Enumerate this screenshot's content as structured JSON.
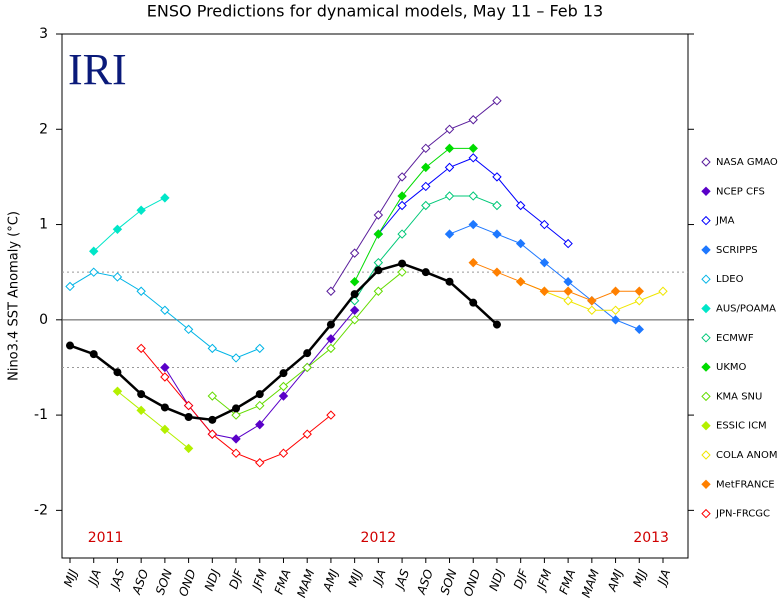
{
  "chart_data": {
    "type": "line",
    "title": "ENSO Predictions for dynamical models, May 11 – Feb 13",
    "logo": "IRI",
    "y_label": "Nino3.4 SST Anomaly (°C)",
    "annotations": [
      "2011",
      "2012",
      "2013"
    ],
    "categories": [
      "MJJ",
      "JJA",
      "JAS",
      "ASO",
      "SON",
      "OND",
      "NDJ",
      "DJF",
      "JFM",
      "FMA",
      "MAM",
      "AMJ",
      "MJJ",
      "JJA",
      "JAS",
      "ASO",
      "SON",
      "OND",
      "NDJ",
      "DJF",
      "JFM",
      "FMA",
      "MAM",
      "AMJ",
      "MJJ",
      "JJA"
    ],
    "ylim": [
      -2.5,
      3
    ],
    "yticks": [
      -2,
      -1,
      0,
      1,
      2,
      3
    ],
    "hlines": [
      0,
      0.5,
      -0.5
    ],
    "observed": {
      "color": "#000000",
      "values": [
        -0.27,
        -0.36,
        -0.55,
        -0.78,
        -0.92,
        -1.02,
        -1.05,
        -0.93,
        -0.78,
        -0.56,
        -0.35,
        -0.05,
        0.27,
        0.52,
        0.59,
        0.5,
        0.4,
        0.18,
        -0.05,
        null,
        null,
        null,
        null,
        null,
        null,
        null
      ]
    },
    "series": [
      {
        "name": "NASA GMAO",
        "color": "#5a1e9c",
        "filled": false,
        "values": [
          null,
          null,
          null,
          null,
          null,
          null,
          null,
          null,
          null,
          null,
          null,
          0.3,
          0.7,
          1.1,
          1.5,
          1.8,
          2.0,
          2.1,
          2.3,
          null,
          null,
          null,
          null,
          null,
          null,
          null
        ]
      },
      {
        "name": "NCEP CFS",
        "color": "#5a00c8",
        "filled": true,
        "values": [
          null,
          null,
          null,
          null,
          -0.5,
          -0.9,
          -1.2,
          -1.25,
          -1.1,
          -0.8,
          -0.5,
          -0.2,
          0.1,
          null,
          null,
          null,
          null,
          null,
          null,
          null,
          null,
          null,
          null,
          null,
          null,
          null
        ]
      },
      {
        "name": "JMA",
        "color": "#0000ff",
        "filled": false,
        "values": [
          null,
          null,
          null,
          null,
          null,
          null,
          null,
          null,
          null,
          null,
          null,
          null,
          null,
          0.9,
          1.2,
          1.4,
          1.6,
          1.7,
          1.5,
          1.2,
          1.0,
          0.8,
          null,
          null,
          null,
          null
        ]
      },
      {
        "name": "SCRIPPS",
        "color": "#1e78ff",
        "filled": true,
        "values": [
          null,
          null,
          null,
          null,
          null,
          null,
          null,
          null,
          null,
          null,
          null,
          null,
          null,
          null,
          null,
          null,
          0.9,
          1.0,
          0.9,
          0.8,
          0.6,
          0.4,
          0.2,
          0.0,
          -0.1,
          null
        ]
      },
      {
        "name": "LDEO",
        "color": "#00b4e6",
        "filled": false,
        "values": [
          0.35,
          0.5,
          0.45,
          0.3,
          0.1,
          -0.1,
          -0.3,
          -0.4,
          -0.3,
          null,
          null,
          null,
          null,
          null,
          null,
          null,
          null,
          null,
          null,
          null,
          null,
          null,
          null,
          null,
          null,
          null
        ]
      },
      {
        "name": "AUS/POAMA",
        "color": "#00e6c8",
        "filled": true,
        "values": [
          null,
          0.72,
          0.95,
          1.15,
          1.28,
          null,
          null,
          null,
          null,
          null,
          null,
          null,
          null,
          null,
          null,
          null,
          null,
          null,
          null,
          null,
          null,
          null,
          null,
          null,
          null,
          null
        ]
      },
      {
        "name": "ECMWF",
        "color": "#00c878",
        "filled": false,
        "values": [
          null,
          null,
          null,
          null,
          null,
          null,
          null,
          null,
          null,
          null,
          null,
          null,
          0.2,
          0.6,
          0.9,
          1.2,
          1.3,
          1.3,
          1.2,
          null,
          null,
          null,
          null,
          null,
          null,
          null
        ]
      },
      {
        "name": "UKMO",
        "color": "#00dc00",
        "filled": true,
        "values": [
          null,
          null,
          null,
          null,
          null,
          null,
          null,
          null,
          null,
          null,
          null,
          null,
          0.4,
          0.9,
          1.3,
          1.6,
          1.8,
          1.8,
          null,
          null,
          null,
          null,
          null,
          null,
          null,
          null
        ]
      },
      {
        "name": "KMA SNU",
        "color": "#64dc00",
        "filled": false,
        "values": [
          null,
          null,
          null,
          null,
          null,
          null,
          -0.8,
          -1.0,
          -0.9,
          -0.7,
          -0.5,
          -0.3,
          0.0,
          0.3,
          0.5,
          null,
          null,
          null,
          null,
          null,
          null,
          null,
          null,
          null,
          null,
          null
        ]
      },
      {
        "name": "ESSIC ICM",
        "color": "#b4f000",
        "filled": true,
        "values": [
          null,
          null,
          -0.75,
          -0.95,
          -1.15,
          -1.35,
          null,
          null,
          null,
          null,
          null,
          null,
          null,
          null,
          null,
          null,
          null,
          null,
          null,
          null,
          null,
          null,
          null,
          null,
          null,
          null
        ]
      },
      {
        "name": "COLA ANOM",
        "color": "#f0e600",
        "filled": false,
        "values": [
          null,
          null,
          null,
          null,
          null,
          null,
          null,
          null,
          null,
          null,
          null,
          null,
          null,
          null,
          null,
          null,
          null,
          null,
          null,
          0.4,
          0.3,
          0.2,
          0.1,
          0.1,
          0.2,
          0.3
        ]
      },
      {
        "name": "MetFRANCE",
        "color": "#ff8000",
        "filled": true,
        "values": [
          null,
          null,
          null,
          null,
          null,
          null,
          null,
          null,
          null,
          null,
          null,
          null,
          null,
          null,
          null,
          null,
          null,
          0.6,
          0.5,
          0.4,
          0.3,
          0.3,
          0.2,
          0.3,
          0.3,
          null
        ]
      },
      {
        "name": "JPN-FRCGC",
        "color": "#ff0000",
        "filled": false,
        "values": [
          null,
          null,
          null,
          -0.3,
          -0.6,
          -0.9,
          -1.2,
          -1.4,
          -1.5,
          -1.4,
          -1.2,
          -1.0,
          null,
          null,
          null,
          null,
          null,
          null,
          null,
          null,
          null,
          null,
          null,
          null,
          null,
          null
        ]
      }
    ]
  }
}
